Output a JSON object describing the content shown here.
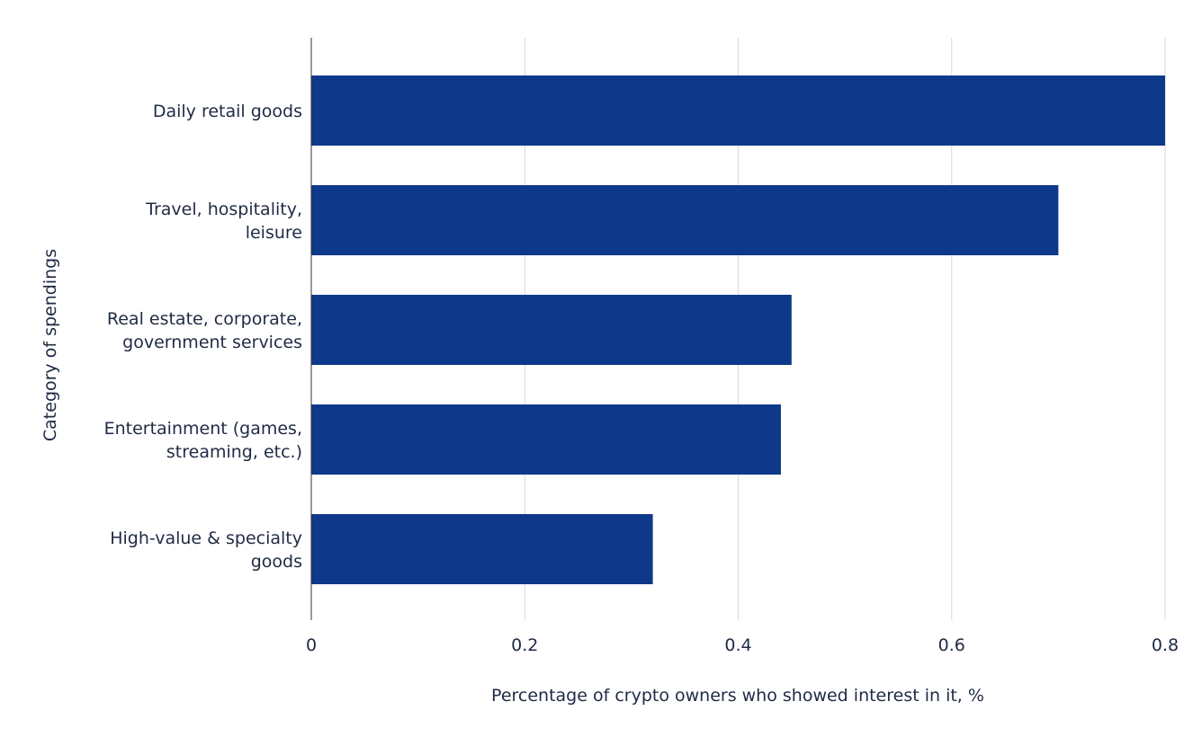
{
  "chart_data": {
    "type": "bar",
    "orientation": "horizontal",
    "categories": [
      "Daily retail goods",
      "Travel, hospitality, leisure",
      "Real estate, corporate, government services",
      "Entertainment (games, streaming, etc.)",
      "High-value & specialty goods"
    ],
    "category_label_lines": [
      [
        "Daily retail goods"
      ],
      [
        "Travel, hospitality,",
        "leisure"
      ],
      [
        "Real estate, corporate,",
        "government services"
      ],
      [
        "Entertainment (games,",
        "streaming, etc.)"
      ],
      [
        "High-value & specialty",
        "goods"
      ]
    ],
    "values": [
      0.8,
      0.7,
      0.45,
      0.44,
      0.32
    ],
    "xlim": [
      0,
      0.8
    ],
    "x_ticks": [
      0,
      0.2,
      0.4,
      0.6,
      0.8
    ],
    "x_tick_labels": [
      "0",
      "0.2",
      "0.4",
      "0.6",
      "0.8"
    ],
    "xlabel": "Percentage of crypto owners who showed interest in it, %",
    "ylabel": "Category of spendings",
    "grid": "vertical",
    "legend": "none",
    "bar_color": "#0e388a",
    "grid_color": "#d9d9d9",
    "axis_color": "#333333",
    "text_color": "#1f2a44"
  }
}
